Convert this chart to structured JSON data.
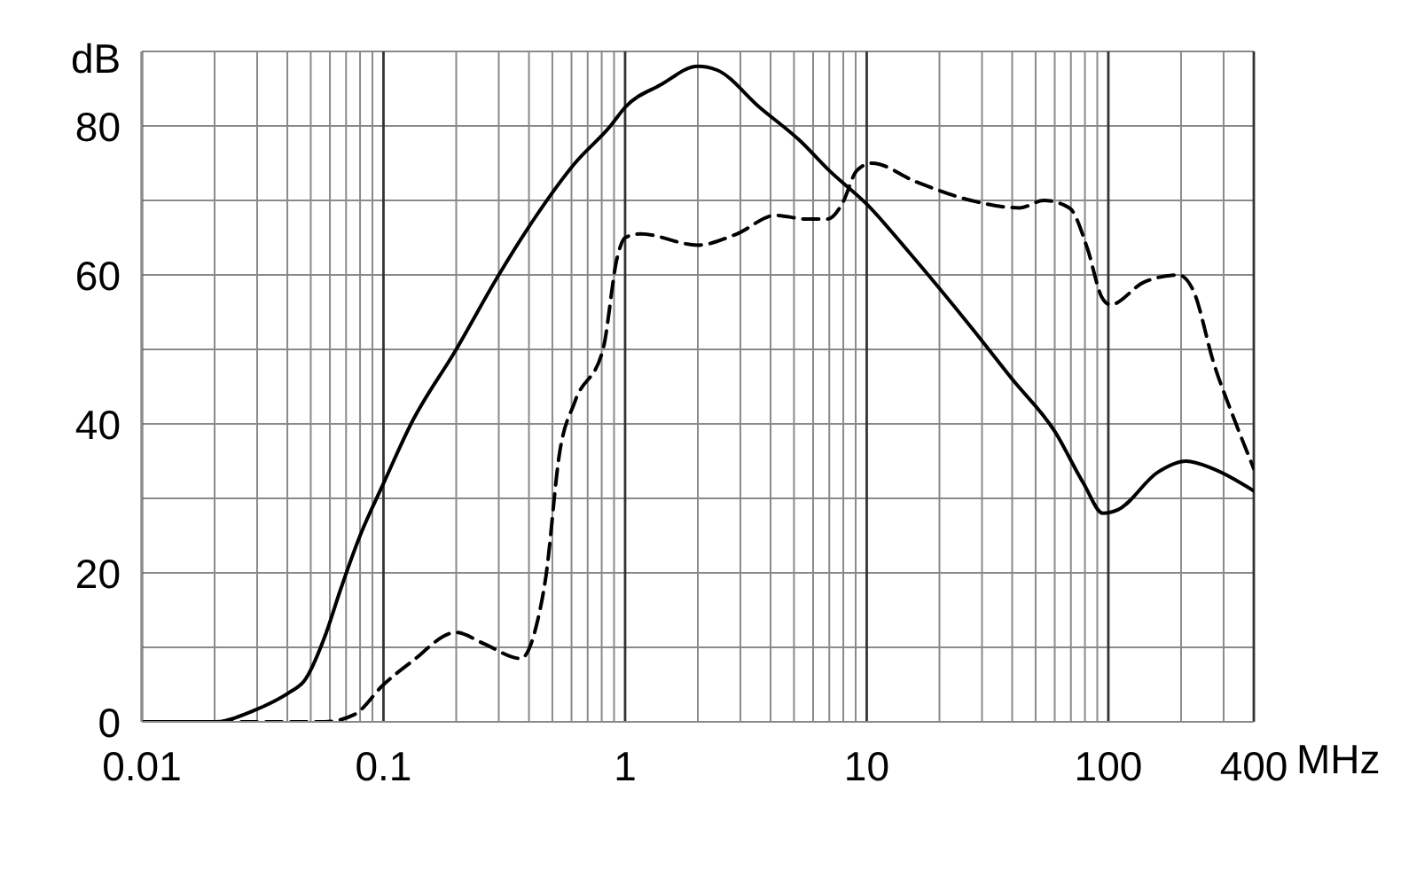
{
  "chart_data": {
    "type": "line",
    "xlabel": "MHz",
    "ylabel": "dB",
    "log": "x",
    "grid": true,
    "marker": "none",
    "xlim": [
      0.01,
      400
    ],
    "xticks": [
      0.01,
      {
        "value": 0.02,
        "label": null
      },
      {
        "value": 0.03,
        "label": null
      },
      {
        "value": 0.04,
        "label": null
      },
      {
        "value": 0.05,
        "label": null
      },
      {
        "value": 0.06,
        "label": null
      },
      {
        "value": 0.07,
        "label": null
      },
      {
        "value": 0.08,
        "label": null
      },
      {
        "value": 0.09,
        "label": null
      },
      0.1,
      {
        "value": 0.2,
        "label": null
      },
      {
        "value": 0.3,
        "label": null
      },
      {
        "value": 0.4,
        "label": null
      },
      {
        "value": 0.5,
        "label": null
      },
      {
        "value": 0.6,
        "label": null
      },
      {
        "value": 0.7,
        "label": null
      },
      {
        "value": 0.8,
        "label": null
      },
      {
        "value": 0.9,
        "label": null
      },
      1,
      {
        "value": 2,
        "label": null
      },
      {
        "value": 3,
        "label": null
      },
      {
        "value": 4,
        "label": null
      },
      {
        "value": 5,
        "label": null
      },
      {
        "value": 6,
        "label": null
      },
      {
        "value": 7,
        "label": null
      },
      {
        "value": 8,
        "label": null
      },
      {
        "value": 9,
        "label": null
      },
      10,
      {
        "value": 20,
        "label": null
      },
      {
        "value": 30,
        "label": null
      },
      {
        "value": 40,
        "label": null
      },
      {
        "value": 50,
        "label": null
      },
      {
        "value": 60,
        "label": null
      },
      {
        "value": 70,
        "label": null
      },
      {
        "value": 80,
        "label": null
      },
      {
        "value": 90,
        "label": null
      },
      100,
      {
        "value": 200,
        "label": null
      },
      {
        "value": 300,
        "label": null
      },
      400
    ],
    "ylim": [
      0,
      90
    ],
    "yticks": [
      0,
      {
        "value": 10,
        "label": null
      },
      20,
      {
        "value": 30,
        "label": null
      },
      40,
      {
        "value": 50,
        "label": null
      },
      60,
      {
        "value": 70,
        "label": null
      },
      80,
      {
        "value": 90,
        "label": null
      }
    ],
    "series": [
      {
        "color": "#000000",
        "line_style": "solid",
        "x": [
          0.01,
          0.02,
          0.029,
          0.035,
          0.041,
          0.047,
          0.058,
          0.066,
          0.08,
          0.1,
          0.13,
          0.2,
          0.3,
          0.42,
          0.62,
          0.87,
          1,
          1.4,
          2,
          2.4,
          3.6,
          5.3,
          7,
          10,
          15,
          27,
          40,
          60,
          79,
          95,
          110,
          160,
          210,
          270,
          400
        ],
        "values": [
          0,
          0,
          1.5,
          2.7,
          4,
          5.5,
          12,
          17.5,
          25,
          32,
          40,
          50,
          60,
          67.5,
          75,
          80,
          82.5,
          85.5,
          88,
          87.5,
          82.5,
          78,
          74,
          69.5,
          63,
          53,
          46,
          39,
          32,
          28,
          28.5,
          33.5,
          35,
          34,
          31
        ]
      },
      {
        "color": "#000000",
        "line_style": "dashed",
        "x": [
          0.01,
          0.057,
          0.076,
          0.1,
          0.13,
          0.2,
          0.26,
          0.37,
          0.43,
          0.47,
          0.535,
          0.62,
          0.81,
          0.93,
          1,
          1.16,
          2,
          2.9,
          4.2,
          5.6,
          6.9,
          7.9,
          9.1,
          10.5,
          16,
          27,
          43,
          54,
          69,
          82,
          94,
          102,
          140,
          195,
          224,
          274,
          333,
          400
        ],
        "values": [
          0,
          0,
          1,
          5,
          8,
          12,
          10.5,
          8.5,
          13,
          19.5,
          36,
          43,
          50,
          62.5,
          65,
          65.5,
          64,
          65.5,
          68,
          67.5,
          67.5,
          69.5,
          74,
          75,
          72.5,
          70,
          69,
          70,
          69,
          63.5,
          57,
          56,
          59,
          60,
          58,
          48,
          40.5,
          34
        ]
      }
    ]
  }
}
